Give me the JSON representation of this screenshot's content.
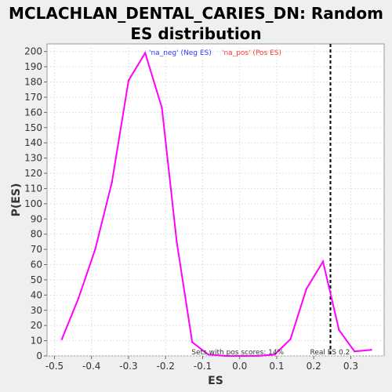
{
  "chart_data": {
    "type": "line",
    "title": "MCLACHLAN_DENTAL_CARIES_DN: Random ES distribution",
    "xlabel": "ES",
    "ylabel": "P(ES)",
    "xlim": [
      -0.52,
      0.39
    ],
    "ylim": [
      0,
      205
    ],
    "xticks": [
      "-0.5",
      "-0.4",
      "-0.3",
      "-0.2",
      "-0.1",
      "0.0",
      "0.1",
      "0.2",
      "0.3"
    ],
    "xtick_values": [
      -0.5,
      -0.4,
      -0.3,
      -0.2,
      -0.1,
      0.0,
      0.1,
      0.2,
      0.3
    ],
    "yticks": [
      "0",
      "10",
      "20",
      "30",
      "40",
      "50",
      "60",
      "70",
      "80",
      "90",
      "100",
      "110",
      "120",
      "130",
      "140",
      "150",
      "160",
      "170",
      "180",
      "190",
      "200"
    ],
    "ytick_values": [
      0,
      10,
      20,
      30,
      40,
      50,
      60,
      70,
      80,
      90,
      100,
      110,
      120,
      130,
      140,
      150,
      160,
      170,
      180,
      190,
      200
    ],
    "grid": true,
    "series": [
      {
        "name": "",
        "color": "#ff00ff",
        "x": [
          -0.48,
          -0.435,
          -0.39,
          -0.345,
          -0.3,
          -0.255,
          -0.21,
          -0.17,
          -0.128,
          -0.085,
          -0.04,
          0.005,
          0.05,
          0.095,
          0.137,
          0.18,
          0.225,
          0.268,
          0.31,
          0.355
        ],
        "y": [
          11,
          38,
          70,
          114,
          181,
          199,
          163,
          75,
          9,
          1,
          0,
          0,
          0,
          1,
          11,
          44,
          62,
          17,
          3,
          4
        ]
      }
    ],
    "legend": [
      {
        "label": "'na_neg' (Neg ES)",
        "color": "#3333ff"
      },
      {
        "label": "'na_pos' (Pos ES)",
        "color": "#ff3333"
      }
    ],
    "legend_placement": "top-center",
    "reference_line": {
      "x": 0.245,
      "style": "dashed",
      "color": "#000000"
    },
    "annotations": [
      {
        "text": "Sets with pos scores: 14%",
        "x": -0.13,
        "y": 0
      },
      {
        "text": "Real ES 0.2",
        "x": 0.19,
        "y": 0
      }
    ]
  }
}
